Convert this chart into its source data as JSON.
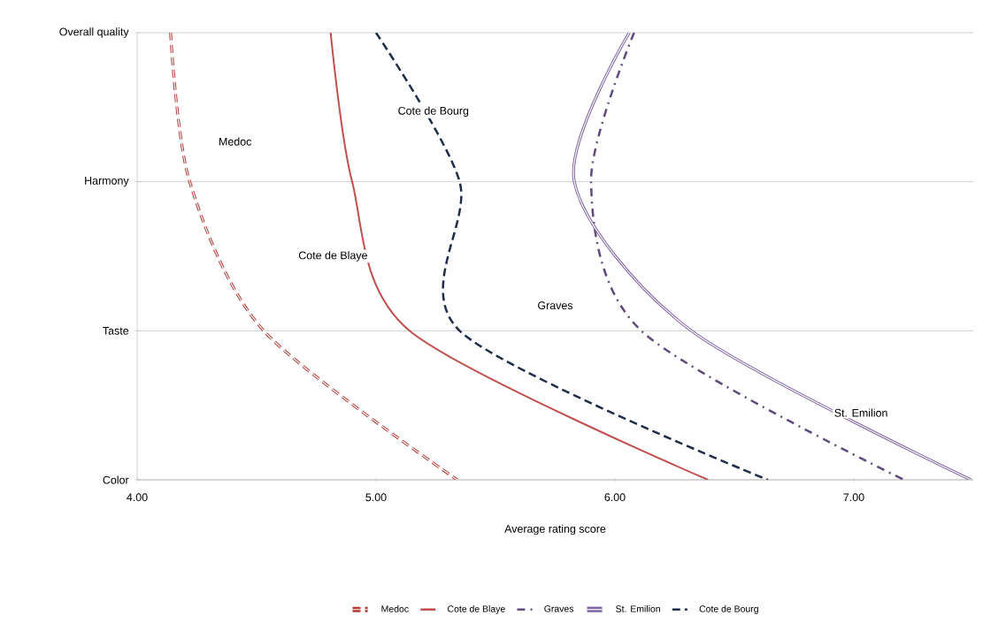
{
  "chart_data": {
    "type": "line",
    "orientation": "horizontal",
    "xlabel": "Average rating score",
    "categories": [
      "Overall quality",
      "Harmony",
      "Taste",
      "Color"
    ],
    "series": [
      {
        "name": "Medoc",
        "color": "#b23a36",
        "line_style": "dashed",
        "values": [
          4.14,
          4.22,
          4.53,
          5.34
        ]
      },
      {
        "name": "Cote de Blaye",
        "color": "#c0504d",
        "line_style": "solid",
        "values": [
          4.81,
          4.9,
          5.14,
          6.39
        ]
      },
      {
        "name": "Graves",
        "color": "#604a7b",
        "line_style": "dashdot",
        "values": [
          6.08,
          5.9,
          6.11,
          7.21
        ]
      },
      {
        "name": "St. Emilion",
        "color": "#8064a2",
        "line_style": "solid",
        "values": [
          6.06,
          5.83,
          6.32,
          7.49
        ]
      },
      {
        "name": "Cote de Bourg",
        "color": "#1f2d4a",
        "line_style": "dashed",
        "values": [
          5.0,
          5.35,
          5.35,
          6.64
        ]
      }
    ],
    "xlim": [
      4,
      7.5
    ],
    "xticks": [
      {
        "value": 4,
        "label": "4.00"
      },
      {
        "value": 5,
        "label": "5.00"
      },
      {
        "value": 6,
        "label": "6.00"
      },
      {
        "value": 7,
        "label": "7.00"
      }
    ],
    "grid": "y",
    "legend": "bottom",
    "marker": "none"
  }
}
